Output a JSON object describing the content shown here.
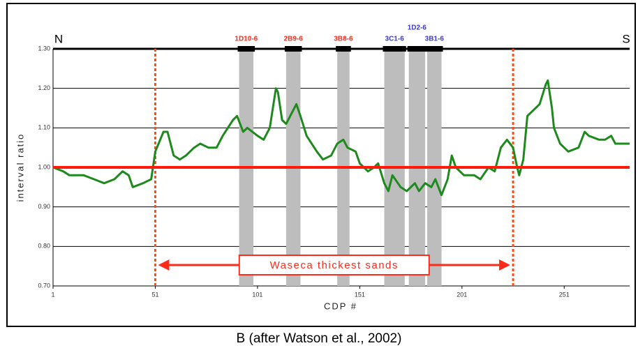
{
  "chart_data": {
    "type": "line",
    "xlabel": "CDP #",
    "ylabel": "interval ratio",
    "caption": "B (after Watson et al., 2002)",
    "left_marker": "N",
    "right_marker": "S",
    "xlim": [
      1,
      283
    ],
    "ylim": [
      0.7,
      1.3
    ],
    "xticks": [
      1,
      51,
      101,
      151,
      201,
      251
    ],
    "yticks": [
      {
        "value": 0.7,
        "label": "0.70"
      },
      {
        "value": 0.8,
        "label": "0.80"
      },
      {
        "value": 0.9,
        "label": "0.90"
      },
      {
        "value": 1.0,
        "label": "1.00"
      },
      {
        "value": 1.1,
        "label": "1.10"
      },
      {
        "value": 1.2,
        "label": "1.20"
      },
      {
        "value": 1.3,
        "label": "1.30"
      }
    ],
    "grid": true,
    "x": [
      1,
      6,
      9,
      16,
      21,
      26,
      31,
      35,
      38,
      40,
      45,
      49,
      51,
      55,
      57,
      60,
      63,
      66,
      70,
      73,
      77,
      81,
      84,
      89,
      91,
      94,
      96,
      101,
      104,
      107,
      110,
      111,
      113,
      115,
      120,
      122,
      125,
      130,
      133,
      137,
      140,
      143,
      145,
      149,
      151,
      155,
      158,
      160,
      163,
      165,
      167,
      171,
      174,
      178,
      180,
      183,
      186,
      188,
      191,
      194,
      196,
      198,
      202,
      207,
      210,
      214,
      217,
      220,
      223,
      226,
      228,
      229,
      231,
      233,
      235,
      239,
      242,
      243,
      245,
      246,
      249,
      253,
      258,
      261,
      263,
      268,
      271,
      274,
      276,
      283
    ],
    "series": [
      {
        "color": "#1e8a1e",
        "values": [
          1.0,
          0.99,
          0.98,
          0.98,
          0.97,
          0.96,
          0.97,
          0.99,
          0.98,
          0.95,
          0.96,
          0.97,
          1.04,
          1.09,
          1.09,
          1.03,
          1.02,
          1.03,
          1.05,
          1.06,
          1.05,
          1.05,
          1.08,
          1.12,
          1.13,
          1.09,
          1.1,
          1.08,
          1.07,
          1.1,
          1.2,
          1.19,
          1.12,
          1.11,
          1.16,
          1.13,
          1.08,
          1.04,
          1.02,
          1.03,
          1.06,
          1.07,
          1.05,
          1.04,
          1.01,
          0.99,
          1.0,
          1.01,
          0.96,
          0.94,
          0.98,
          0.95,
          0.94,
          0.96,
          0.94,
          0.96,
          0.95,
          0.97,
          0.93,
          0.97,
          1.03,
          1.0,
          0.98,
          0.98,
          0.97,
          1.0,
          0.99,
          1.05,
          1.07,
          1.05,
          1.0,
          0.98,
          1.02,
          1.13,
          1.14,
          1.16,
          1.21,
          1.22,
          1.15,
          1.1,
          1.06,
          1.04,
          1.05,
          1.09,
          1.08,
          1.07,
          1.07,
          1.08,
          1.06,
          1.06
        ]
      }
    ],
    "bands": [
      {
        "label": "1D10-6",
        "color": "#ff2a1a",
        "x": [
          92,
          99
        ]
      },
      {
        "label": "2B9-6",
        "color": "#ff2a1a",
        "x": [
          115,
          122
        ]
      },
      {
        "label": "3B8-6",
        "color": "#ff2a1a",
        "x": [
          140,
          146
        ]
      },
      {
        "label": "3C1-6",
        "color": "#3a3ad0",
        "x": [
          163,
          173
        ]
      },
      {
        "label": "1D2-6",
        "color": "#3a3ad0",
        "x": [
          175,
          183
        ]
      },
      {
        "label": "3B1-6",
        "color": "#3a3ad0",
        "x": [
          184,
          191
        ]
      }
    ],
    "reference_line": {
      "value": 1.0,
      "color": "#ff1a0a"
    },
    "vlines": [
      51,
      226
    ],
    "vline_color": "#ff4a10",
    "range_label": "Waseca thickest sands"
  }
}
